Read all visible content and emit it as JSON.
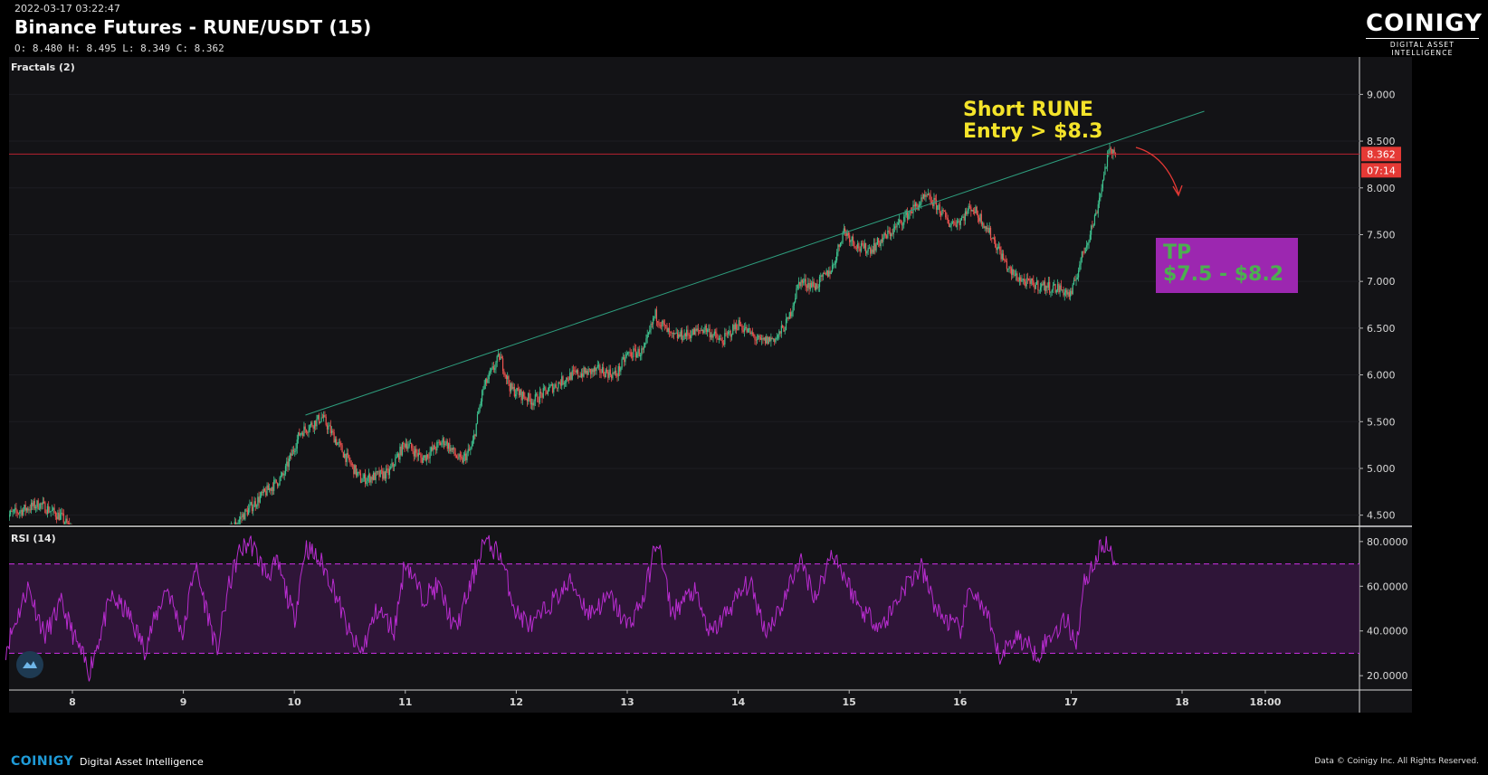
{
  "header": {
    "timestamp": "2022-03-17 03:22:47",
    "title": "Binance Futures - RUNE/USDT (15)",
    "ohlc": "O: 8.480 H: 8.495 L: 8.349 C: 8.362"
  },
  "logo": {
    "name": "COINIGY",
    "tagline": "DIGITAL ASSET INTELLIGENCE"
  },
  "footer": {
    "brand": "COINIGY",
    "tagline": "Digital Asset Intelligence",
    "copyright": "Data © Coinigy Inc.  All Rights Reserved."
  },
  "colors": {
    "background": "#131316",
    "up": "#3ec28f",
    "down": "#ef5350",
    "trendline": "#2e9e7e",
    "rsi": "#b82ccf",
    "price_line": "#b8232f",
    "annotation_yellow": "#f4e32a",
    "tp_box": "#9c27b0",
    "tp_text": "#4caf50"
  },
  "chart_data": [
    {
      "type": "candlestick",
      "indicator_label": "Fractals (2)",
      "x_ticks": [
        "8",
        "9",
        "10",
        "11",
        "12",
        "13",
        "14",
        "15",
        "16",
        "17",
        "18",
        "18:00"
      ],
      "y_ticks": [
        "4.500",
        "5.000",
        "5.500",
        "6.000",
        "6.500",
        "7.000",
        "7.500",
        "8.000",
        "8.500",
        "9.000"
      ],
      "ylim": [
        4.4,
        9.4
      ],
      "last_price": "8.362",
      "countdown": "07:14",
      "path": [
        [
          7.4,
          4.49
        ],
        [
          7.7,
          4.62
        ],
        [
          7.9,
          4.48
        ],
        [
          8.05,
          4.25
        ],
        [
          8.5,
          4.05
        ],
        [
          9.0,
          4.05
        ],
        [
          9.3,
          4.15
        ],
        [
          9.5,
          4.45
        ],
        [
          9.7,
          4.7
        ],
        [
          9.9,
          4.92
        ],
        [
          10.05,
          5.38
        ],
        [
          10.25,
          5.55
        ],
        [
          10.45,
          5.15
        ],
        [
          10.6,
          4.88
        ],
        [
          10.85,
          4.95
        ],
        [
          11.0,
          5.28
        ],
        [
          11.15,
          5.1
        ],
        [
          11.35,
          5.3
        ],
        [
          11.5,
          5.07
        ],
        [
          11.6,
          5.22
        ],
        [
          11.7,
          5.85
        ],
        [
          11.85,
          6.2
        ],
        [
          11.95,
          5.85
        ],
        [
          12.15,
          5.72
        ],
        [
          12.3,
          5.85
        ],
        [
          12.5,
          6.0
        ],
        [
          12.75,
          6.05
        ],
        [
          12.9,
          6.0
        ],
        [
          13.0,
          6.22
        ],
        [
          13.15,
          6.25
        ],
        [
          13.25,
          6.65
        ],
        [
          13.4,
          6.4
        ],
        [
          13.6,
          6.45
        ],
        [
          13.7,
          6.5
        ],
        [
          13.85,
          6.35
        ],
        [
          14.0,
          6.55
        ],
        [
          14.2,
          6.35
        ],
        [
          14.35,
          6.4
        ],
        [
          14.45,
          6.58
        ],
        [
          14.55,
          7.0
        ],
        [
          14.7,
          6.95
        ],
        [
          14.85,
          7.15
        ],
        [
          14.95,
          7.55
        ],
        [
          15.1,
          7.35
        ],
        [
          15.2,
          7.35
        ],
        [
          15.3,
          7.45
        ],
        [
          15.4,
          7.55
        ],
        [
          15.55,
          7.75
        ],
        [
          15.7,
          7.9
        ],
        [
          15.8,
          7.8
        ],
        [
          15.9,
          7.62
        ],
        [
          16.0,
          7.65
        ],
        [
          16.1,
          7.8
        ],
        [
          16.2,
          7.65
        ],
        [
          16.3,
          7.45
        ],
        [
          16.45,
          7.1
        ],
        [
          16.6,
          6.98
        ],
        [
          16.75,
          6.95
        ],
        [
          16.9,
          6.92
        ],
        [
          17.0,
          6.85
        ],
        [
          17.08,
          7.2
        ],
        [
          17.15,
          7.45
        ],
        [
          17.22,
          7.7
        ],
        [
          17.28,
          8.05
        ],
        [
          17.33,
          8.35
        ],
        [
          17.4,
          8.42
        ]
      ],
      "annotations": {
        "entry": "Short RUNE\nEntry > $8.3",
        "tp_label": "TP",
        "tp_range": "$7.5 - $8.2"
      },
      "trendline": {
        "x": [
          10.1,
          18.2
        ],
        "y": [
          5.57,
          8.82
        ]
      }
    },
    {
      "type": "line",
      "indicator_label": "RSI (14)",
      "y_ticks": [
        "20.0000",
        "40.0000",
        "60.0000",
        "80.0000"
      ],
      "ylim": [
        14,
        86
      ],
      "band": [
        30,
        70
      ],
      "path": [
        [
          7.4,
          32
        ],
        [
          7.6,
          60
        ],
        [
          7.75,
          38
        ],
        [
          7.9,
          52
        ],
        [
          8.05,
          33
        ],
        [
          8.15,
          22
        ],
        [
          8.35,
          55
        ],
        [
          8.5,
          48
        ],
        [
          8.65,
          32
        ],
        [
          8.85,
          60
        ],
        [
          9.0,
          38
        ],
        [
          9.1,
          70
        ],
        [
          9.25,
          42
        ],
        [
          9.3,
          30
        ],
        [
          9.4,
          58
        ],
        [
          9.5,
          75
        ],
        [
          9.6,
          80
        ],
        [
          9.75,
          65
        ],
        [
          9.85,
          70
        ],
        [
          10.0,
          45
        ],
        [
          10.1,
          78
        ],
        [
          10.25,
          70
        ],
        [
          10.35,
          60
        ],
        [
          10.5,
          38
        ],
        [
          10.6,
          30
        ],
        [
          10.75,
          50
        ],
        [
          10.9,
          40
        ],
        [
          11.0,
          72
        ],
        [
          11.15,
          55
        ],
        [
          11.3,
          60
        ],
        [
          11.45,
          40
        ],
        [
          11.6,
          62
        ],
        [
          11.7,
          80
        ],
        [
          11.85,
          75
        ],
        [
          12.0,
          48
        ],
        [
          12.15,
          42
        ],
        [
          12.3,
          52
        ],
        [
          12.5,
          62
        ],
        [
          12.65,
          48
        ],
        [
          12.85,
          55
        ],
        [
          13.0,
          42
        ],
        [
          13.15,
          55
        ],
        [
          13.27,
          82
        ],
        [
          13.4,
          48
        ],
        [
          13.6,
          58
        ],
        [
          13.75,
          38
        ],
        [
          13.95,
          52
        ],
        [
          14.1,
          62
        ],
        [
          14.25,
          40
        ],
        [
          14.4,
          52
        ],
        [
          14.55,
          72
        ],
        [
          14.7,
          55
        ],
        [
          14.85,
          76
        ],
        [
          14.95,
          65
        ],
        [
          15.1,
          50
        ],
        [
          15.3,
          42
        ],
        [
          15.5,
          60
        ],
        [
          15.65,
          68
        ],
        [
          15.8,
          48
        ],
        [
          16.0,
          40
        ],
        [
          16.1,
          60
        ],
        [
          16.25,
          45
        ],
        [
          16.35,
          28
        ],
        [
          16.5,
          38
        ],
        [
          16.7,
          30
        ],
        [
          16.85,
          40
        ],
        [
          16.95,
          45
        ],
        [
          17.05,
          35
        ],
        [
          17.12,
          62
        ],
        [
          17.22,
          72
        ],
        [
          17.3,
          80
        ],
        [
          17.4,
          70
        ]
      ]
    }
  ]
}
